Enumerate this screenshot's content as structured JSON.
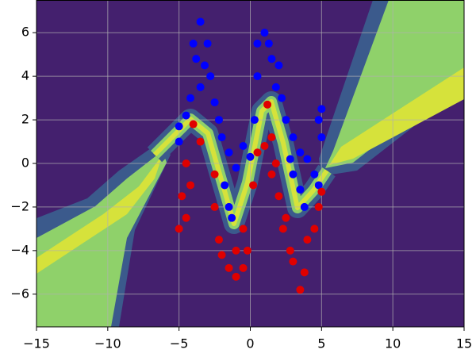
{
  "chart_data": {
    "type": "scatter",
    "xlim": [
      -15,
      15
    ],
    "ylim": [
      -7.5,
      7.5
    ],
    "xticks": [
      {
        "value": -15,
        "label": "−15"
      },
      {
        "value": -10,
        "label": "−10"
      },
      {
        "value": -5,
        "label": "−5"
      },
      0,
      5,
      10,
      15
    ],
    "yticks": [
      {
        "value": -6,
        "label": "−6"
      },
      {
        "value": -4,
        "label": "−4"
      },
      {
        "value": -2,
        "label": "−2"
      },
      0,
      2,
      4,
      6
    ],
    "grid": true,
    "series": [
      {
        "color": "#0000ff",
        "x": [
          -3.5,
          -4,
          -3,
          -3.8,
          -3.2,
          -2.8,
          -3.5,
          -4.2,
          -2.5,
          -2.2,
          -4.5,
          -5,
          -5,
          -2,
          -1.5,
          -1,
          -1.8,
          -1.5,
          -1.3,
          -0.5,
          0,
          0.3,
          0.5,
          0.5,
          1,
          1.3,
          1.5,
          2,
          1.8,
          2.2,
          2.5,
          3,
          3.5,
          4,
          4.5,
          4.8,
          5,
          5,
          4.8,
          3,
          3.5,
          3.8,
          2.8
        ],
        "y": [
          6.5,
          5.5,
          5.5,
          4.8,
          4.5,
          4,
          3.5,
          3,
          2.8,
          2,
          2.2,
          1.7,
          1,
          1.2,
          0.5,
          -0.2,
          -1,
          -2,
          -2.5,
          0.8,
          0.3,
          2,
          4,
          5.5,
          6,
          5.5,
          4.8,
          4.5,
          3.5,
          3,
          2,
          1.2,
          0.5,
          0.2,
          -0.5,
          -1,
          1.2,
          2.5,
          2,
          -0.5,
          -1.2,
          -2,
          0.2
        ]
      },
      {
        "color": "#e00000",
        "x": [
          -4.5,
          -4.2,
          -4.8,
          -4.5,
          -5,
          -4,
          -2.5,
          -2.5,
          -2.2,
          -2,
          -1.5,
          -1,
          -0.5,
          -0.2,
          -0.5,
          0.2,
          0.5,
          1,
          1.5,
          1.2,
          1.8,
          2,
          2.3,
          2.8,
          3,
          3.5,
          3.8,
          4,
          4.5,
          4.8,
          5,
          2.5,
          -3.5,
          -1,
          1.5
        ],
        "y": [
          0,
          -1,
          -1.5,
          -2.5,
          -3,
          1.8,
          -0.5,
          -2,
          -3.5,
          -4.2,
          -4.8,
          -5.2,
          -4.8,
          -4,
          -3,
          -1,
          0.5,
          0.8,
          1.2,
          2.7,
          0,
          -1.5,
          -3,
          -4,
          -4.5,
          -5.8,
          -5,
          -3.5,
          -3,
          -2,
          -1.3,
          -2.5,
          1,
          -4,
          -0.5
        ]
      }
    ]
  }
}
